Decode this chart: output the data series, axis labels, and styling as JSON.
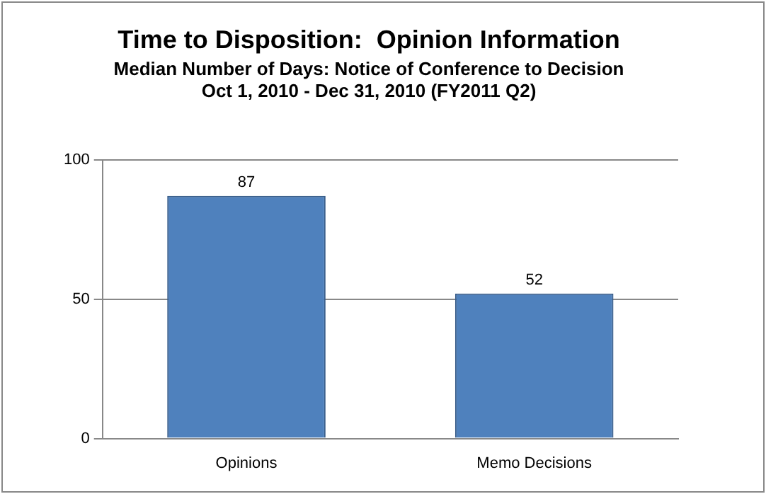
{
  "chart_data": {
    "type": "bar",
    "title": "Time to Disposition:  Opinion Information",
    "subtitle": "Median Number of Days: Notice of Conference to Decision\nOct 1, 2010 - Dec 31, 2010 (FY2011 Q2)",
    "categories": [
      "Opinions",
      "Memo Decisions"
    ],
    "values": [
      87,
      52
    ],
    "color": "#4f81bd",
    "ylim": [
      0,
      100
    ],
    "yticks": [
      0,
      50,
      100
    ],
    "grid": "y",
    "data_labels": true,
    "legend": false
  }
}
